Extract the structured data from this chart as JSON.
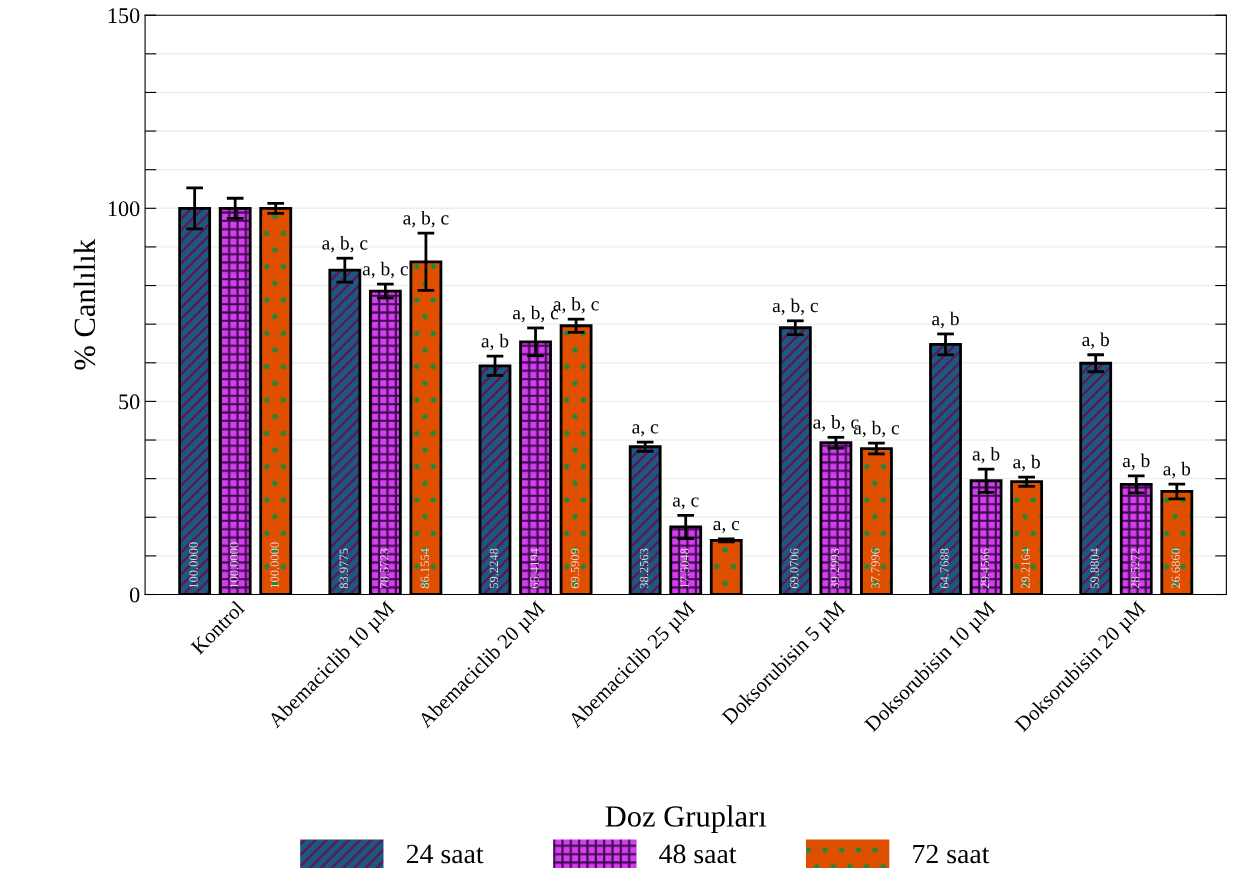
{
  "chart_data": {
    "type": "bar",
    "xlabel": "Doz Grupları",
    "ylabel": "% Canlılık",
    "categories": [
      "Kontrol",
      "Abemaciclib 10 µM",
      "Abemaciclib 20 µM",
      "Abemaciclib 25 µM",
      "Doksorubisin 5 µM",
      "Doksorubisin 10 µM",
      "Doksorubisin 20 µM"
    ],
    "series": [
      {
        "name": "24 saat",
        "color": "#1a5a7a",
        "values": [
          100.0,
          83.9775,
          59.2248,
          38.2563,
          69.0706,
          64.7688,
          59.8804
        ],
        "errors": [
          5.3,
          3.1,
          2.5,
          1.2,
          1.8,
          2.7,
          2.2
        ],
        "value_labels": [
          "100.0000",
          "83.9775",
          "59.2248",
          "38.2563",
          "69.0706",
          "64.7688",
          "59.8804"
        ]
      },
      {
        "name": "48 saat",
        "color": "#d63cf0",
        "values": [
          100.0,
          78.5723,
          65.4194,
          17.5048,
          39.2993,
          29.4566,
          28.5272
        ],
        "errors": [
          2.6,
          1.8,
          3.6,
          3.0,
          1.4,
          3.0,
          2.2
        ],
        "value_labels": [
          "100.0000",
          "78.5723",
          "65.4194",
          "17.5048",
          "39.2993",
          "29.4566",
          "28.5272"
        ]
      },
      {
        "name": "72 saat",
        "color": "#e04e00",
        "values": [
          100.0,
          86.1554,
          69.5909,
          14.0,
          37.7996,
          29.2164,
          26.686
        ],
        "errors": [
          1.3,
          7.4,
          1.7,
          0.4,
          1.4,
          1.2,
          1.9
        ],
        "value_labels": [
          "100.0000",
          "86.1554",
          "69.5909",
          null,
          "37.7996",
          "29.2164",
          "26.6860"
        ]
      }
    ],
    "ylim": [
      0,
      150
    ],
    "yticks": [
      0,
      {
        "value": 10,
        "label": null
      },
      {
        "value": 20,
        "label": null
      },
      {
        "value": 30,
        "label": null
      },
      {
        "value": 40,
        "label": null
      },
      50,
      {
        "value": 60,
        "label": null
      },
      {
        "value": 70,
        "label": null
      },
      {
        "value": 80,
        "label": null
      },
      {
        "value": 90,
        "label": null
      },
      100,
      {
        "value": 110,
        "label": null
      },
      {
        "value": 120,
        "label": null
      },
      {
        "value": 130,
        "label": null
      },
      {
        "value": 140,
        "label": null
      },
      150
    ],
    "grid": "y",
    "legend": "bottom",
    "annotations": [
      "a, b, c",
      "a, b, c",
      "a, b, c",
      "a, b",
      "a, b, c",
      "a, b, c",
      "a, c",
      "a, c",
      "a, c",
      "a, b, c",
      "a, b, c",
      "a, b, c",
      "a, b",
      "a, b",
      "a, b",
      "a, b",
      "a, b",
      "a, b"
    ]
  }
}
